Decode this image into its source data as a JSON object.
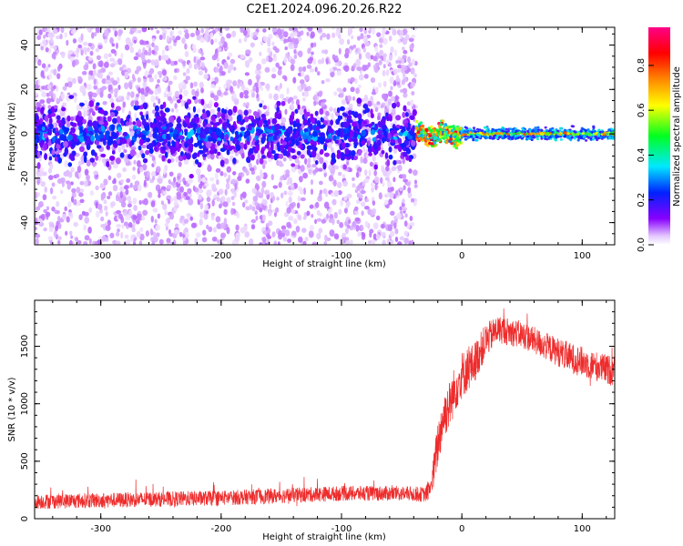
{
  "title": "C2E1.2024.096.20.26.R22",
  "chart_data": [
    {
      "type": "heatmap",
      "xlabel": "Height of straight line (km)",
      "ylabel": "Frequency (Hz)",
      "xlim": [
        -355,
        127
      ],
      "ylim": [
        -50,
        48
      ],
      "xticks": [
        -300,
        -200,
        -100,
        0,
        100
      ],
      "yticks": [
        -40,
        -20,
        0,
        20,
        40
      ],
      "colorbar": {
        "label": "Normalized spectral amplitude",
        "range": [
          0,
          0.97
        ],
        "ticks": [
          "0.0",
          "0.2",
          "0.4",
          "0.6",
          "0.8"
        ],
        "colormap": "rainbow (white-violet-blue-cyan-green-yellow-orange-red-magenta)"
      },
      "regions": [
        {
          "x_range": [
            -355,
            -38
          ],
          "band_center_hz": 0,
          "band_halfwidth_hz": 10,
          "scatter_extent_hz": 50,
          "amplitude": "low (0.05-0.3)"
        },
        {
          "x_range": [
            -38,
            0
          ],
          "band_center_hz": 0,
          "band_halfwidth_hz": 3,
          "amplitude": "high (0.6-0.95)"
        },
        {
          "x_range": [
            0,
            127
          ],
          "band_center_hz": 0,
          "band_halfwidth_hz": 2,
          "amplitude": "high (0.3-0.9)"
        }
      ]
    },
    {
      "type": "line",
      "xlabel": "Height of straight line (km)",
      "ylabel": "SNR (10 * v/v)",
      "xlim": [
        -355,
        127
      ],
      "ylim": [
        0,
        1900
      ],
      "xticks": [
        -300,
        -200,
        -100,
        0,
        100
      ],
      "yticks": [
        0,
        500,
        1000,
        1500
      ],
      "color": "#ee2c2c",
      "series": [
        {
          "x": [
            -355,
            -300,
            -250,
            -200,
            -150,
            -100,
            -50,
            -30,
            -25,
            -20,
            -15,
            -10,
            -5,
            0,
            10,
            20,
            30,
            50,
            70,
            90,
            110,
            127
          ],
          "y": [
            150,
            160,
            170,
            180,
            200,
            220,
            220,
            210,
            300,
            650,
            900,
            1000,
            1150,
            1250,
            1350,
            1550,
            1650,
            1600,
            1500,
            1400,
            1330,
            1280
          ],
          "noise_amplitude": [
            110,
            110,
            110,
            110,
            110,
            110,
            110,
            110,
            200,
            350,
            350,
            350,
            350,
            350,
            300,
            250,
            200,
            200,
            200,
            220,
            220,
            220
          ]
        }
      ]
    }
  ]
}
